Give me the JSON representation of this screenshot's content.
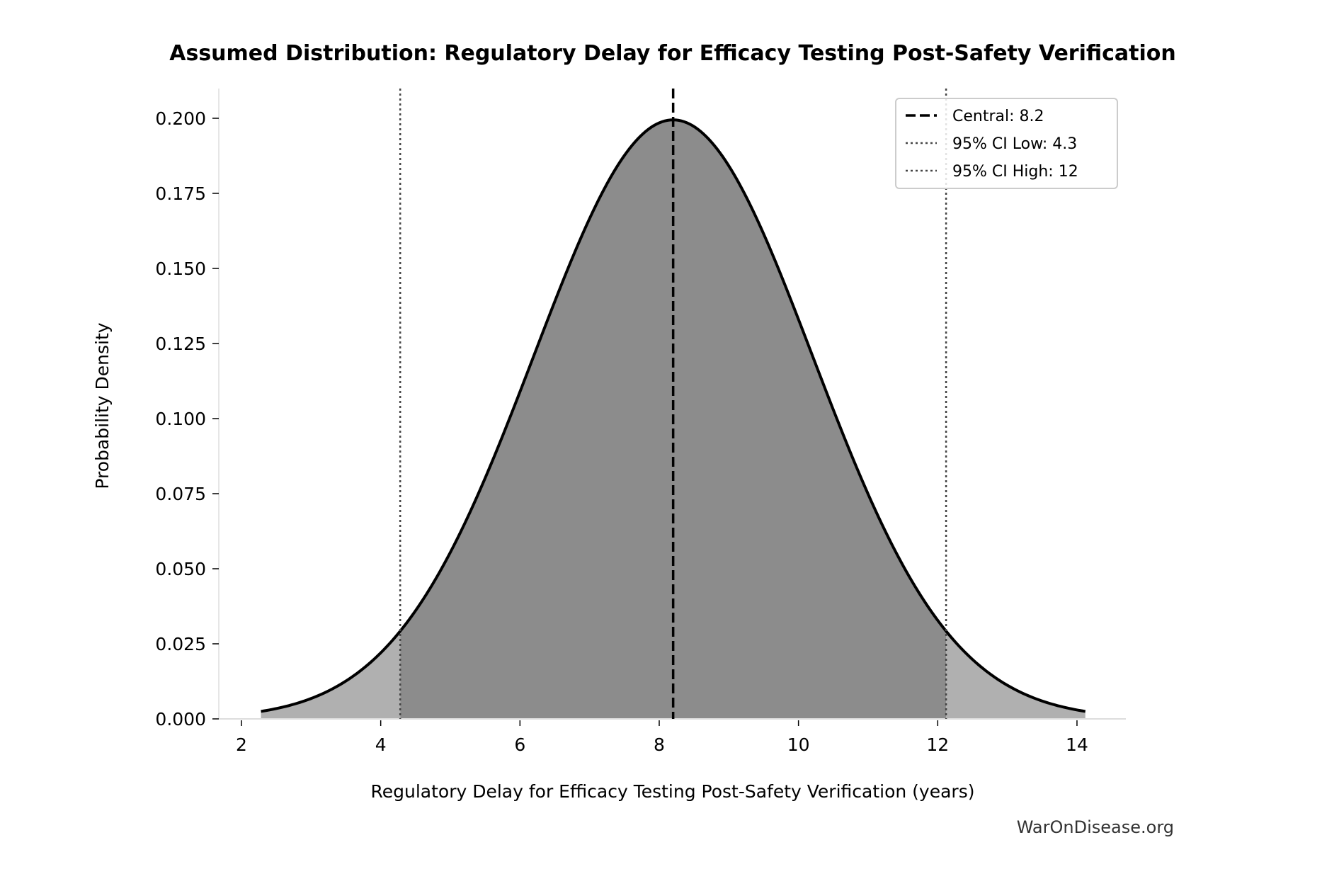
{
  "chart_data": {
    "type": "area",
    "title": "Assumed Distribution: Regulatory Delay for Efficacy Testing Post-Safety Verification",
    "xlabel": "Regulatory Delay for Efficacy Testing Post-Safety Verification (years)",
    "ylabel": "Probability Density",
    "xlim": [
      1.7,
      14.7
    ],
    "ylim": [
      0,
      0.21
    ],
    "x_ticks": [
      2,
      4,
      6,
      8,
      10,
      12,
      14
    ],
    "y_ticks": [
      "0.000",
      "0.025",
      "0.050",
      "0.075",
      "0.100",
      "0.125",
      "0.150",
      "0.175",
      "0.200"
    ],
    "distribution": {
      "kind": "normal",
      "mean": 8.2,
      "sd": 2.0,
      "x_range": [
        2.28,
        14.12
      ]
    },
    "central": 8.2,
    "ci_low": 4.28,
    "ci_high": 12.12,
    "fill_colors": {
      "inner": "#8c8c8c",
      "tails": "#b0b0b0"
    },
    "grid": false,
    "legend_position": "top-right",
    "legend": [
      {
        "label": "Central: 8.2",
        "style": "dashed"
      },
      {
        "label": "95% CI Low: 4.3",
        "style": "dotted"
      },
      {
        "label": "95% CI High: 12",
        "style": "dotted"
      }
    ]
  },
  "watermark": "WarOnDisease.org"
}
